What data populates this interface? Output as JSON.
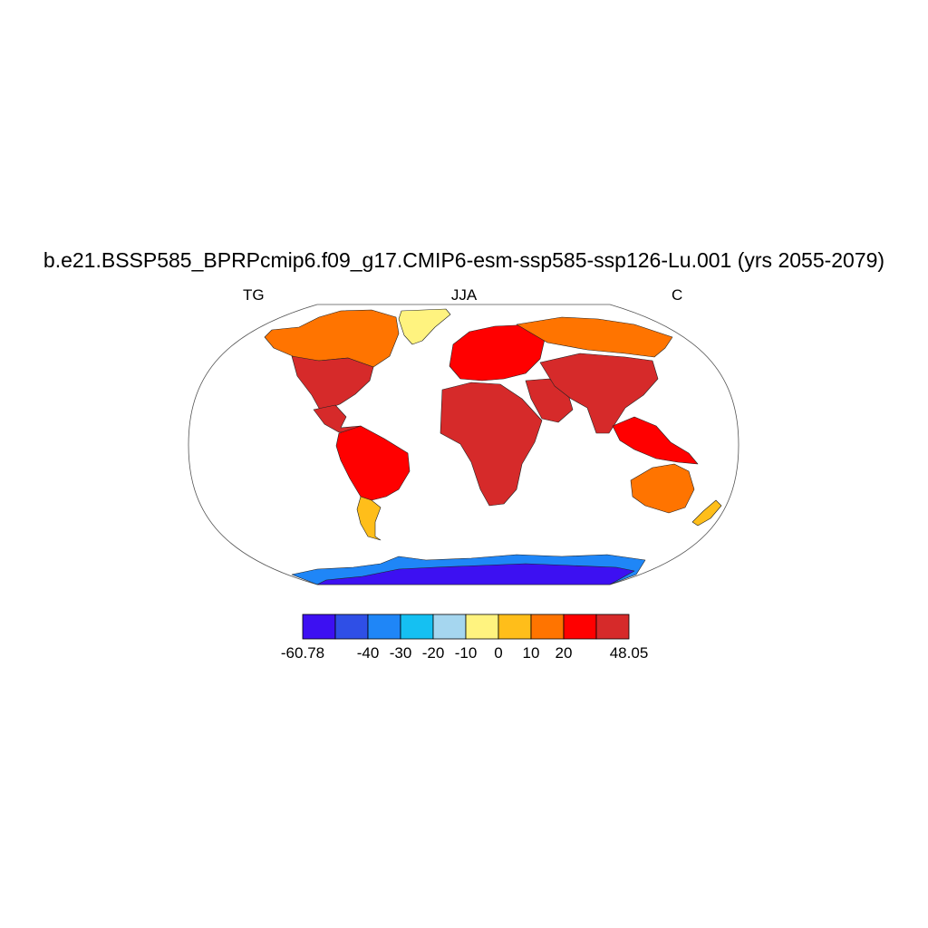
{
  "title": "b.e21.BSSP585_BPRPcmip6.f09_g17.CMIP6-esm-ssp585-ssp126-Lu.001 (yrs 2055-2079)",
  "left_label": "TG",
  "center_label": "JJA",
  "right_label": "C",
  "colorbar": {
    "colors": [
      "#3d10f2",
      "#2f4fe6",
      "#1f86f7",
      "#15c0f2",
      "#a5d6ef",
      "#fff37f",
      "#ffbe1a",
      "#ff7400",
      "#ff0000",
      "#d62a2a"
    ],
    "labels": [
      "-60.78",
      "-40",
      "-30",
      "-20",
      "-10",
      "0",
      "10",
      "20",
      "48.05"
    ],
    "label_at_boundary": [
      0,
      2,
      3,
      4,
      5,
      6,
      7,
      8,
      10
    ]
  },
  "chart_data": {
    "type": "map",
    "variable": "TG",
    "season": "JJA",
    "units": "C",
    "min": -60.78,
    "max": 48.05,
    "levels": [
      -40,
      -30,
      -20,
      -10,
      0,
      10,
      20
    ],
    "regions": [
      {
        "name": "Greenland",
        "band": 5
      },
      {
        "name": "Canada",
        "band": 7
      },
      {
        "name": "United States",
        "band": 9
      },
      {
        "name": "Mexico",
        "band": 9
      },
      {
        "name": "South America",
        "band": 8
      },
      {
        "name": "Patagonia",
        "band": 6
      },
      {
        "name": "Europe",
        "band": 8
      },
      {
        "name": "Siberia",
        "band": 7
      },
      {
        "name": "Africa",
        "band": 9
      },
      {
        "name": "Middle East",
        "band": 9
      },
      {
        "name": "South Asia",
        "band": 9
      },
      {
        "name": "Southeast Asia",
        "band": 8
      },
      {
        "name": "Australia",
        "band": 7
      },
      {
        "name": "New Zealand",
        "band": 6
      },
      {
        "name": "Antarctica coast",
        "band": 2
      },
      {
        "name": "Antarctica interior",
        "band": 0
      }
    ]
  }
}
